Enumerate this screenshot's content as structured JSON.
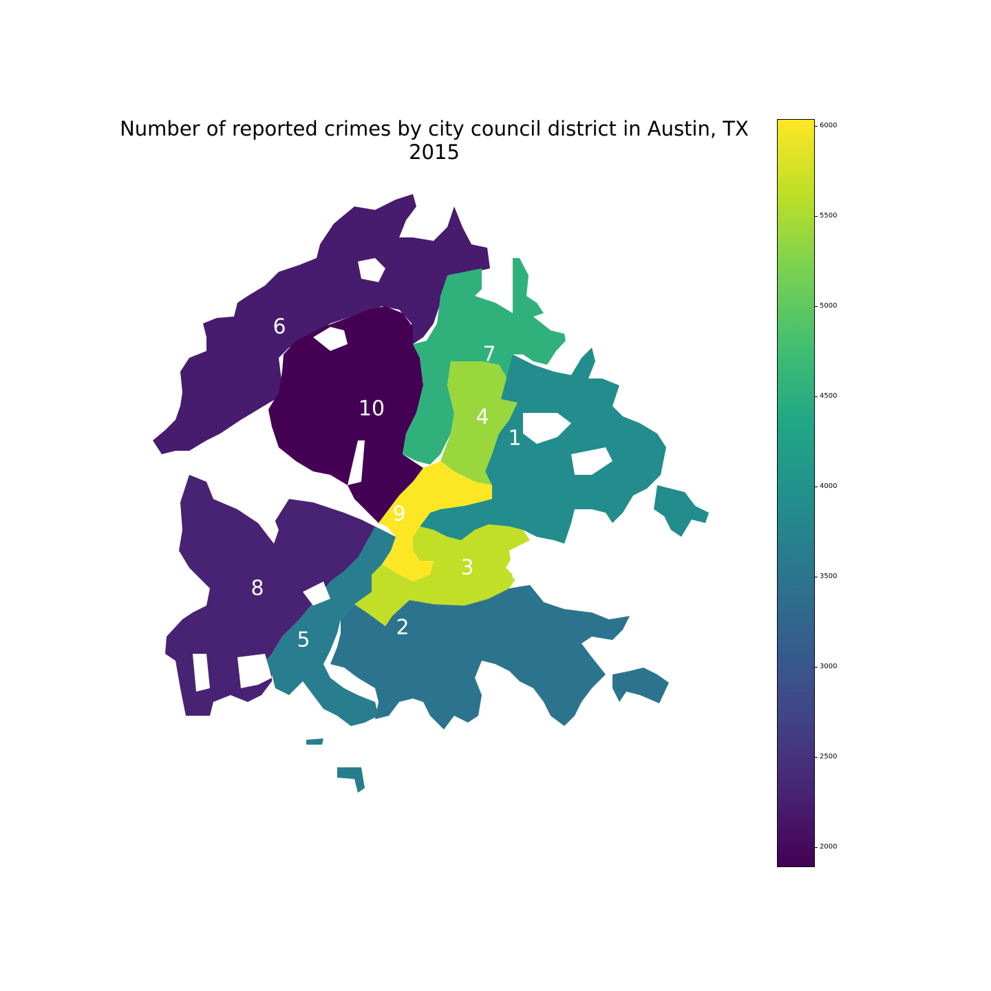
{
  "chart_data": {
    "type": "choropleth",
    "title": "Number of reported crimes by city council district in Austin, TX\n2015",
    "title_lines": [
      "Number of reported crimes by city council district in Austin, TX",
      "2015"
    ],
    "colormap": "viridis",
    "colorbar": {
      "min": 1890,
      "max": 6040,
      "ticks": [
        "2000",
        "2500",
        "3000",
        "3500",
        "4000",
        "4500",
        "5000",
        "5500",
        "6000"
      ],
      "tick_values": [
        2000,
        2500,
        3000,
        3500,
        4000,
        4500,
        5000,
        5500,
        6000
      ],
      "orientation": "vertical",
      "placement": "right"
    },
    "districts": [
      {
        "label": "1",
        "value": 3900
      },
      {
        "label": "2",
        "value": 3480
      },
      {
        "label": "3",
        "value": 5650
      },
      {
        "label": "4",
        "value": 5400
      },
      {
        "label": "5",
        "value": 3650
      },
      {
        "label": "6",
        "value": 2200
      },
      {
        "label": "7",
        "value": 4550
      },
      {
        "label": "8",
        "value": 2280
      },
      {
        "label": "9",
        "value": 6040
      },
      {
        "label": "10",
        "value": 1890
      }
    ],
    "colors": {
      "low": "#440154",
      "high": "#fde725"
    }
  }
}
